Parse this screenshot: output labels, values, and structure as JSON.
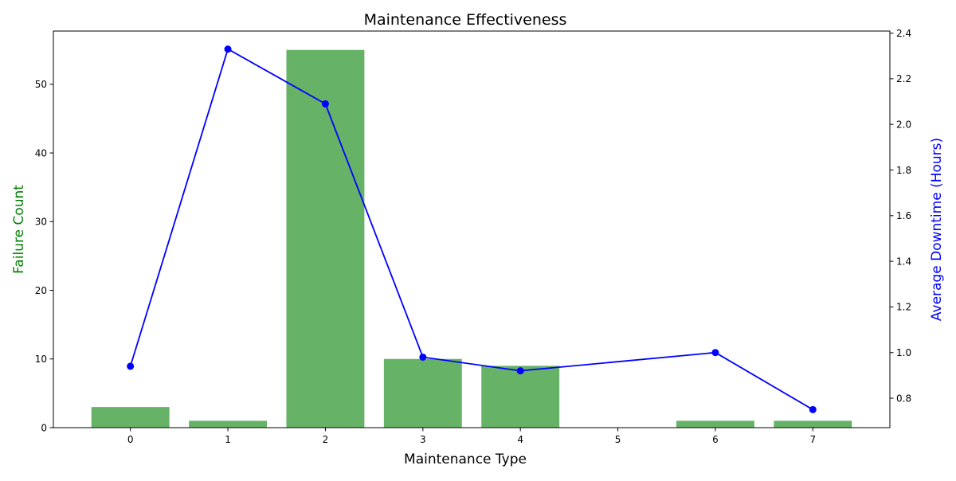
{
  "chart_data": {
    "type": "bar",
    "title": "Maintenance Effectiveness",
    "xlabel": "Maintenance Type",
    "ylabel": "Failure Count",
    "y2label": "Average Downtime (Hours)",
    "categories": [
      "0",
      "1",
      "2",
      "3",
      "4",
      "5",
      "6",
      "7"
    ],
    "series": [
      {
        "type": "bar",
        "axis": "left",
        "color": "#66b266",
        "values": [
          3,
          1,
          55,
          10,
          9,
          null,
          1,
          1
        ]
      },
      {
        "type": "line",
        "axis": "right",
        "color": "#0000ff",
        "values": [
          0.94,
          2.33,
          2.09,
          0.98,
          0.92,
          null,
          1.0,
          0.75
        ]
      }
    ],
    "ylim": [
      0,
      57.75
    ],
    "y2lim": [
      0.671,
      2.409
    ],
    "yticks": [
      0,
      10,
      20,
      30,
      40,
      50
    ],
    "y2ticks": [
      0.8,
      1.0,
      1.2,
      1.4,
      1.6,
      1.8,
      2.0,
      2.2,
      2.4
    ],
    "xlim": [
      -0.79,
      7.79
    ],
    "legend": "none",
    "grid": false,
    "colors": {
      "title": "#000000",
      "ylabel": "#008000",
      "y2label": "#0000ff",
      "axes": "#000000"
    }
  }
}
